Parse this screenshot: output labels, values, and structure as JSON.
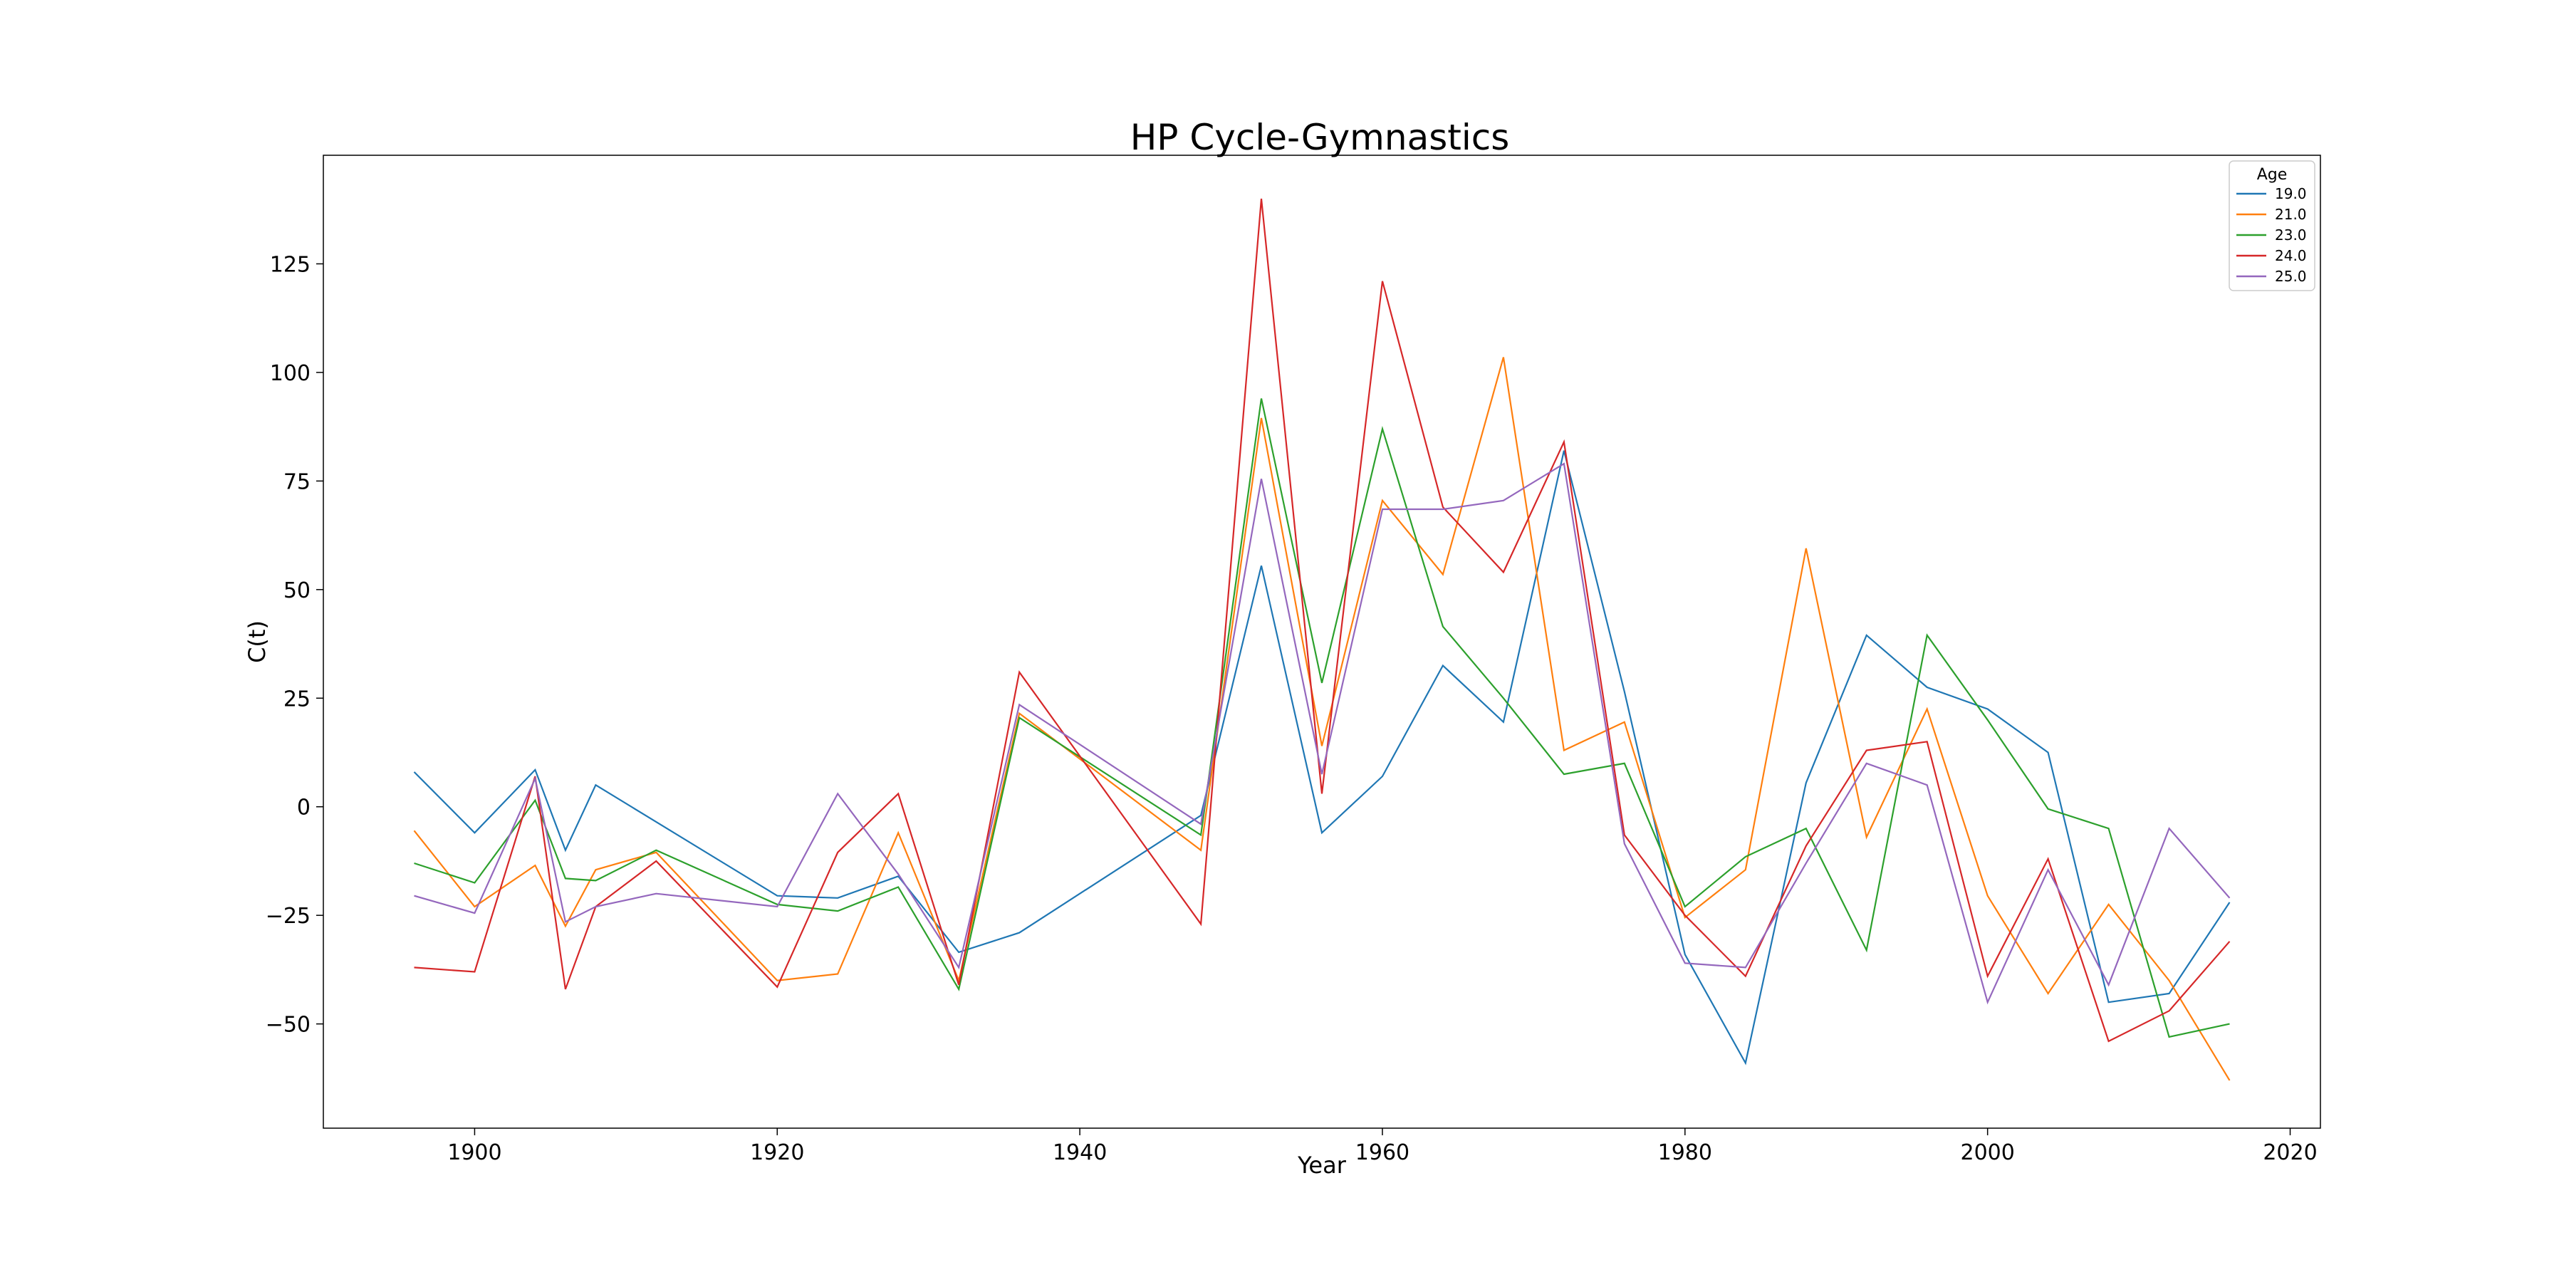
{
  "chart_data": {
    "type": "line",
    "title": "HP Cycle-Gymnastics",
    "xlabel": "Year",
    "ylabel": "C(t)",
    "xlim": [
      1890,
      2022
    ],
    "ylim": [
      -74,
      150
    ],
    "xticks": [
      1900,
      1920,
      1940,
      1960,
      1980,
      2000,
      2020
    ],
    "xtick_labels": [
      "1900",
      "1920",
      "1940",
      "1960",
      "1980",
      "2000",
      "2020"
    ],
    "yticks": [
      -50,
      -25,
      0,
      25,
      50,
      75,
      100,
      125
    ],
    "ytick_labels": [
      "−50",
      "−25",
      "0",
      "25",
      "50",
      "75",
      "100",
      "125"
    ],
    "grid": false,
    "legend": {
      "title": "Age",
      "position": "top-right"
    },
    "series": [
      {
        "name": "19.0",
        "color": "#1f77b4",
        "x": [
          1896,
          1900,
          1904,
          1906,
          1908,
          1920,
          1924,
          1928,
          1932,
          1936,
          1948,
          1952,
          1956,
          1960,
          1964,
          1968,
          1972,
          1976,
          1980,
          1984,
          1988,
          1992,
          1996,
          2000,
          2004,
          2008,
          2012,
          2016
        ],
        "y": [
          8,
          -6,
          8.5,
          -10,
          5,
          -20.5,
          -21,
          -16,
          -33.5,
          -29,
          -2,
          55.5,
          -6,
          7,
          32.5,
          19.5,
          82,
          26.5,
          -34,
          -59,
          5.5,
          39.5,
          27.5,
          22.5,
          12.5,
          -45,
          -43,
          -22
        ]
      },
      {
        "name": "21.0",
        "color": "#ff7f0e",
        "x": [
          1896,
          1900,
          1904,
          1906,
          1908,
          1912,
          1920,
          1924,
          1928,
          1932,
          1936,
          1948,
          1952,
          1956,
          1960,
          1964,
          1968,
          1972,
          1976,
          1980,
          1984,
          1988,
          1992,
          1996,
          2000,
          2004,
          2008,
          2012,
          2016
        ],
        "y": [
          -5.5,
          -23,
          -13.5,
          -27.5,
          -14.5,
          -10.5,
          -40,
          -38.5,
          -6,
          -40,
          21.5,
          -10,
          89.5,
          14,
          70.5,
          53.5,
          103.5,
          13,
          19.5,
          -25.5,
          -14.5,
          59.5,
          -7,
          22.5,
          -20.5,
          -43,
          -22.5,
          -40,
          -63
        ]
      },
      {
        "name": "23.0",
        "color": "#2ca02c",
        "x": [
          1896,
          1900,
          1904,
          1906,
          1908,
          1912,
          1920,
          1924,
          1928,
          1932,
          1936,
          1948,
          1952,
          1956,
          1960,
          1964,
          1968,
          1972,
          1976,
          1980,
          1984,
          1988,
          1992,
          1996,
          2000,
          2004,
          2008,
          2012,
          2016
        ],
        "y": [
          -13,
          -17.5,
          1.5,
          -16.5,
          -17,
          -10,
          -22.5,
          -24,
          -18.5,
          -42,
          20.5,
          -6.5,
          94,
          28.5,
          87,
          41.5,
          25,
          7.5,
          10,
          -23,
          -11.5,
          -5,
          -33,
          39.5,
          20,
          -0.5,
          -5,
          -53,
          -50
        ]
      },
      {
        "name": "24.0",
        "color": "#d62728",
        "x": [
          1896,
          1900,
          1904,
          1906,
          1908,
          1912,
          1920,
          1924,
          1928,
          1932,
          1936,
          1948,
          1952,
          1956,
          1960,
          1964,
          1968,
          1972,
          1976,
          1980,
          1984,
          1988,
          1992,
          1996,
          2000,
          2004,
          2008,
          2012,
          2016
        ],
        "y": [
          -37,
          -38,
          7,
          -42,
          -23,
          -12.5,
          -41.5,
          -10.5,
          3,
          -41,
          31,
          -27,
          140,
          3,
          121,
          69,
          54,
          84,
          -6.5,
          -25,
          -39,
          -9,
          13,
          15,
          -39,
          -12,
          -54,
          -47,
          -31
        ]
      },
      {
        "name": "25.0",
        "color": "#9467bd",
        "x": [
          1896,
          1900,
          1904,
          1906,
          1908,
          1912,
          1920,
          1924,
          1928,
          1932,
          1936,
          1948,
          1952,
          1956,
          1960,
          1964,
          1968,
          1972,
          1976,
          1980,
          1984,
          1988,
          1992,
          1996,
          2000,
          2004,
          2008,
          2012,
          2016
        ],
        "y": [
          -20.5,
          -24.5,
          6.5,
          -26.5,
          -23,
          -20,
          -23,
          3,
          -15.5,
          -37,
          23.5,
          -4,
          75.5,
          7.5,
          68.5,
          68.5,
          70.5,
          79,
          -8.5,
          -36,
          -37,
          -13,
          10,
          5,
          -45,
          -14.5,
          -41,
          -5,
          -21
        ]
      }
    ]
  }
}
